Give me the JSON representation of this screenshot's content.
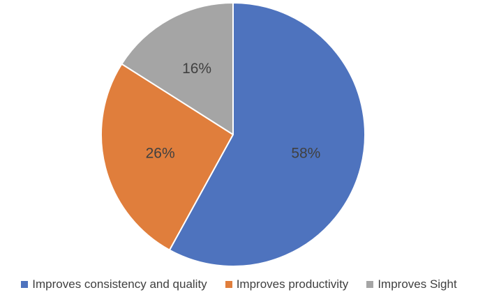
{
  "chart_data": {
    "type": "pie",
    "categories": [
      "Improves consistency and quality",
      "Improves productivity",
      "Improves Sight"
    ],
    "values": [
      58,
      26,
      16
    ],
    "labels": [
      "58%",
      "26%",
      "16%"
    ],
    "colors": [
      "#4e73be",
      "#e07e3c",
      "#a5a5a5"
    ],
    "legend_position": "bottom",
    "start_angle": "top",
    "direction": "clockwise"
  }
}
